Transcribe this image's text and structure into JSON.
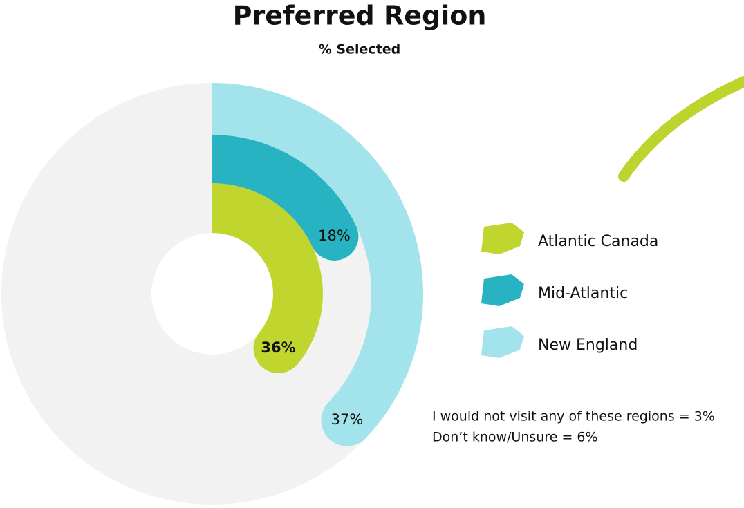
{
  "chart_data": {
    "type": "radial_bar",
    "title": "Preferred Region",
    "subtitle": "% Selected",
    "ylim": [
      0,
      100
    ],
    "series": [
      {
        "name": "Atlantic Canada",
        "color": "#c0d62f",
        "values": [
          36
        ],
        "value_labels": [
          "36%"
        ]
      },
      {
        "name": "Mid-Atlantic",
        "color": "#27b3c1",
        "values": [
          18
        ],
        "value_labels": [
          "18%"
        ]
      },
      {
        "name": "New England",
        "color": "#a3e4ec",
        "values": [
          37
        ],
        "value_labels": [
          "37%"
        ]
      }
    ],
    "annotations": [
      "I would not visit any of these regions = 3%",
      "Don’t know/Unsure = 6%"
    ]
  }
}
